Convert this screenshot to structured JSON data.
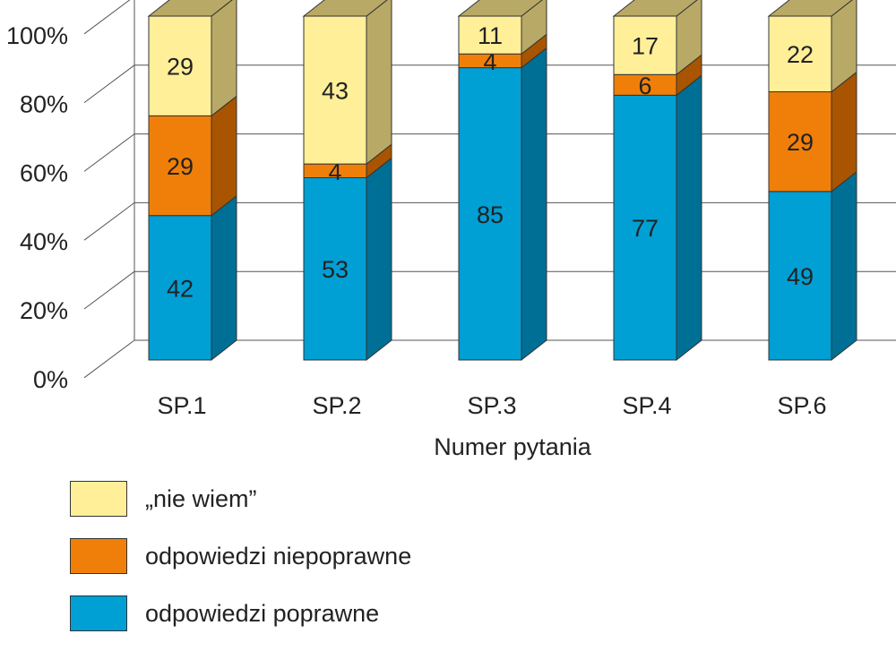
{
  "chart_data": {
    "type": "bar",
    "stacked": true,
    "three_d": true,
    "categories": [
      "SP.1",
      "SP.2",
      "SP.3",
      "SP.4",
      "SP.6"
    ],
    "xlabel": "Numer pytania",
    "ylabel": "",
    "ylim": [
      0,
      100
    ],
    "y_ticks": [
      "0%",
      "20%",
      "40%",
      "60%",
      "80%",
      "100%"
    ],
    "grid": true,
    "legend_position": "bottom",
    "series": [
      {
        "name": "odpowiedzi poprawne",
        "color": "#009fd4",
        "side_color": "#006f96",
        "values": [
          42,
          53,
          85,
          77,
          49
        ]
      },
      {
        "name": "odpowiedzi niepoprawne",
        "color": "#f07f09",
        "side_color": "#a85400",
        "values": [
          29,
          4,
          4,
          6,
          29
        ]
      },
      {
        "name": "„nie wiem”",
        "color": "#ffef99",
        "side_color": "#b8aa66",
        "values": [
          29,
          43,
          11,
          17,
          22
        ]
      }
    ]
  }
}
